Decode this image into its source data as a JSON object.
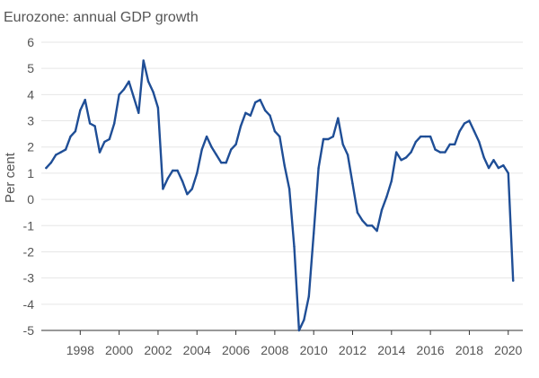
{
  "chart_data": {
    "type": "line",
    "title": "Eurozone: annual GDP growth",
    "xlabel": "",
    "ylabel": "Per cent",
    "xlim": [
      1996.0,
      2020.75
    ],
    "ylim": [
      -5,
      6
    ],
    "yticks": [
      6,
      5,
      4,
      3,
      2,
      1,
      0,
      -1,
      -2,
      -3,
      -4,
      -5
    ],
    "xticks": [
      1998,
      2000,
      2002,
      2004,
      2006,
      2008,
      2010,
      2012,
      2014,
      2016,
      2018,
      2020
    ],
    "grid": true,
    "colors": {
      "line": "#1f4e96",
      "text": "#555555",
      "grid": "#e6e6e6",
      "axis": "#333333"
    },
    "series": [
      {
        "name": "Eurozone GDP growth",
        "x": [
          1996.25,
          1996.5,
          1996.75,
          1997.0,
          1997.25,
          1997.5,
          1997.75,
          1998.0,
          1998.25,
          1998.5,
          1998.75,
          1999.0,
          1999.25,
          1999.5,
          1999.75,
          2000.0,
          2000.25,
          2000.5,
          2000.75,
          2001.0,
          2001.25,
          2001.5,
          2001.75,
          2002.0,
          2002.25,
          2002.5,
          2002.75,
          2003.0,
          2003.25,
          2003.5,
          2003.75,
          2004.0,
          2004.25,
          2004.5,
          2004.75,
          2005.0,
          2005.25,
          2005.5,
          2005.75,
          2006.0,
          2006.25,
          2006.5,
          2006.75,
          2007.0,
          2007.25,
          2007.5,
          2007.75,
          2008.0,
          2008.25,
          2008.5,
          2008.75,
          2009.0,
          2009.25,
          2009.5,
          2009.75,
          2010.0,
          2010.25,
          2010.5,
          2010.75,
          2011.0,
          2011.25,
          2011.5,
          2011.75,
          2012.0,
          2012.25,
          2012.5,
          2012.75,
          2013.0,
          2013.25,
          2013.5,
          2013.75,
          2014.0,
          2014.25,
          2014.5,
          2014.75,
          2015.0,
          2015.25,
          2015.5,
          2015.75,
          2016.0,
          2016.25,
          2016.5,
          2016.75,
          2017.0,
          2017.25,
          2017.5,
          2017.75,
          2018.0,
          2018.25,
          2018.5,
          2018.75,
          2019.0,
          2019.25,
          2019.5,
          2019.75,
          2020.0,
          2020.25
        ],
        "values": [
          1.2,
          1.4,
          1.7,
          1.8,
          1.9,
          2.4,
          2.6,
          3.4,
          3.8,
          2.9,
          2.8,
          1.8,
          2.2,
          2.3,
          2.9,
          4.0,
          4.2,
          4.5,
          3.9,
          3.3,
          5.3,
          4.5,
          4.1,
          3.5,
          0.4,
          0.8,
          1.1,
          1.1,
          0.7,
          0.2,
          0.4,
          1.0,
          1.9,
          2.4,
          2.0,
          1.7,
          1.4,
          1.4,
          1.9,
          2.1,
          2.8,
          3.3,
          3.2,
          3.7,
          3.8,
          3.4,
          3.2,
          2.6,
          2.4,
          1.3,
          0.4,
          -1.8,
          -5.0,
          -4.6,
          -3.7,
          -1.3,
          1.2,
          2.3,
          2.3,
          2.4,
          3.1,
          2.1,
          1.7,
          0.6,
          -0.5,
          -0.8,
          -1.0,
          -1.0,
          -1.2,
          -0.4,
          0.1,
          0.7,
          1.8,
          1.5,
          1.6,
          1.8,
          2.2,
          2.4,
          2.4,
          2.4,
          1.9,
          1.8,
          1.8,
          2.1,
          2.1,
          2.6,
          2.9,
          3.0,
          2.6,
          2.2,
          1.6,
          1.2,
          1.5,
          1.2,
          1.3,
          1.0,
          -3.1
        ]
      }
    ]
  }
}
